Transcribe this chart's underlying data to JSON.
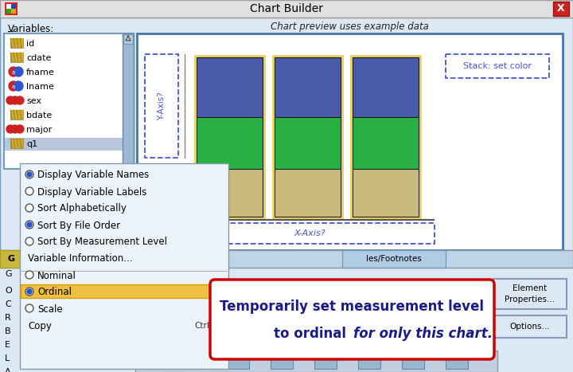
{
  "title": "Chart Builder",
  "variables_label": "Variables:",
  "variables": [
    "id",
    "cdate",
    "fname",
    "lname",
    "sex",
    "bdate",
    "major",
    "q1"
  ],
  "chart_preview_text": "Chart preview uses example data",
  "stack_label": "Stack: set color",
  "x_axis_label": "X-Axis?",
  "y_axis_label": "Y-Axis?",
  "bar_blue": "#4a5baa",
  "bar_green": "#28b045",
  "bar_tan": "#c8b87a",
  "bar_yellow_outline": "#e8d060",
  "context_menu_items": [
    "Display Variable Names",
    "Display Variable Labels",
    "Sort Alphabetically",
    "Sort By File Order",
    "Sort By Measurement Level",
    "Variable Information...",
    "Nominal",
    "Ordinal",
    "Scale",
    "Copy"
  ],
  "selected_item": "Ordinal",
  "selected_item_bg": "#f0c040",
  "radio_checked_items": [
    "Display Variable Names",
    "Sort By File Order",
    "Ordinal"
  ],
  "menu_bg": "#edf3fa",
  "tooltip_text_line1": "Temporarily set measurement level",
  "tooltip_text_line2": "to ordinal ",
  "tooltip_text_italic": "for only this chart.",
  "tooltip_border": "#cc0000",
  "tooltip_bg": "#ffffff",
  "right_btn1": "Element\nProperties...",
  "right_btn2": "Options...",
  "win_bg": "#dce8f4",
  "panel_bg": "#c4d8ec",
  "listbox_bg": "#ffffff",
  "tab_active_bg": "#a8c4e0",
  "tab_inactive_bg": "#c0d4e8",
  "scrollbar_bg": "#a0b8d4",
  "chart_inner_bg": "#ffffff",
  "chart_border": "#4477aa",
  "dashed_border": "#4455cc"
}
